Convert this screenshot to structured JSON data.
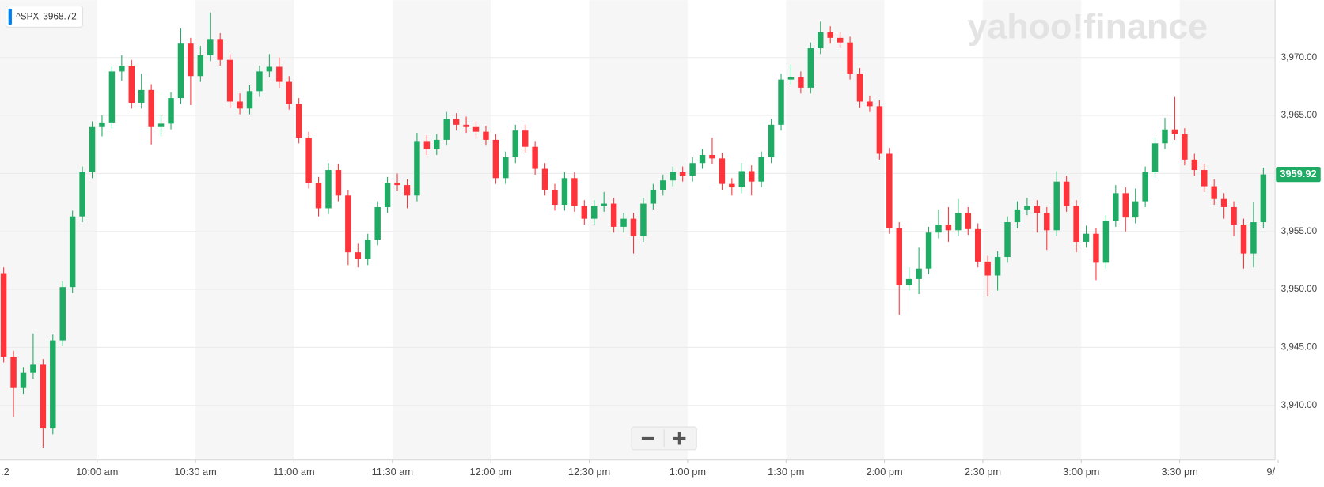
{
  "chart_data": {
    "type": "candlestick",
    "logo": "yahoo!finance",
    "badge": {
      "symbol": "^SPX",
      "value": 3968.72
    },
    "last_price": 3959.92,
    "up_color": "#1fab64",
    "down_color": "#ff333a",
    "ylim": [
      3935.3,
      3974.95
    ],
    "yticks": [
      {
        "value": 3940,
        "label": "3,940.00"
      },
      {
        "value": 3945,
        "label": "3,945.00"
      },
      {
        "value": 3950,
        "label": "3,950.00"
      },
      {
        "value": 3955,
        "label": "3,955.00"
      },
      {
        "value": 3960,
        "label": "3,960.00"
      },
      {
        "value": 3965,
        "label": "3,965.00"
      },
      {
        "value": 3970,
        "label": "3,970.00"
      }
    ],
    "xticks": [
      {
        "value": "9:30 am",
        "label": ".2"
      },
      "10:00 am",
      "10:30 am",
      "11:00 am",
      "11:30 am",
      "12:00 pm",
      "12:30 pm",
      "1:00 pm",
      "1:30 pm",
      "2:00 pm",
      "2:30 pm",
      "3:00 pm",
      "3:30 pm",
      {
        "value": "4:00 pm",
        "label": "9/"
      }
    ],
    "grid": true,
    "x": [
      "9:30 am",
      "9:33 am",
      "9:36 am",
      "9:39 am",
      "9:42 am",
      "9:45 am",
      "9:48 am",
      "9:51 am",
      "9:54 am",
      "9:57 am",
      "10:00 am",
      "10:03 am",
      "10:06 am",
      "10:09 am",
      "10:12 am",
      "10:15 am",
      "10:18 am",
      "10:21 am",
      "10:24 am",
      "10:27 am",
      "10:30 am",
      "10:33 am",
      "10:36 am",
      "10:39 am",
      "10:42 am",
      "10:45 am",
      "10:48 am",
      "10:51 am",
      "10:54 am",
      "10:57 am",
      "11:00 am",
      "11:03 am",
      "11:06 am",
      "11:09 am",
      "11:12 am",
      "11:15 am",
      "11:18 am",
      "11:21 am",
      "11:24 am",
      "11:27 am",
      "11:30 am",
      "11:33 am",
      "11:36 am",
      "11:39 am",
      "11:42 am",
      "11:45 am",
      "11:48 am",
      "11:51 am",
      "11:54 am",
      "11:57 am",
      "12:00 pm",
      "12:03 pm",
      "12:06 pm",
      "12:09 pm",
      "12:12 pm",
      "12:15 pm",
      "12:18 pm",
      "12:21 pm",
      "12:24 pm",
      "12:27 pm",
      "12:30 pm",
      "12:33 pm",
      "12:36 pm",
      "12:39 pm",
      "12:42 pm",
      "12:45 pm",
      "12:48 pm",
      "12:51 pm",
      "12:54 pm",
      "12:57 pm",
      "1:00 pm",
      "1:03 pm",
      "1:06 pm",
      "1:09 pm",
      "1:12 pm",
      "1:15 pm",
      "1:18 pm",
      "1:21 pm",
      "1:24 pm",
      "1:27 pm",
      "1:30 pm",
      "1:33 pm",
      "1:36 pm",
      "1:39 pm",
      "1:42 pm",
      "1:45 pm",
      "1:48 pm",
      "1:51 pm",
      "1:54 pm",
      "1:57 pm",
      "2:00 pm",
      "2:03 pm",
      "2:06 pm",
      "2:09 pm",
      "2:12 pm",
      "2:15 pm",
      "2:18 pm",
      "2:21 pm",
      "2:24 pm",
      "2:27 pm",
      "2:30 pm",
      "2:33 pm",
      "2:36 pm",
      "2:39 pm",
      "2:42 pm",
      "2:45 pm",
      "2:48 pm",
      "2:51 pm",
      "2:54 pm",
      "2:57 pm",
      "3:00 pm",
      "3:03 pm",
      "3:06 pm",
      "3:09 pm",
      "3:12 pm",
      "3:15 pm",
      "3:18 pm",
      "3:21 pm",
      "3:24 pm",
      "3:27 pm",
      "3:30 pm",
      "3:33 pm",
      "3:36 pm",
      "3:39 pm",
      "3:42 pm",
      "3:45 pm",
      "3:48 pm",
      "3:51 pm",
      "3:54 pm"
    ],
    "open": [
      3951.4,
      3944.2,
      3941.5,
      3942.8,
      3943.5,
      3938.0,
      3945.6,
      3950.2,
      3956.3,
      3960.1,
      3964.0,
      3964.4,
      3968.8,
      3969.3,
      3966.1,
      3967.2,
      3964.0,
      3964.3,
      3966.5,
      3971.2,
      3968.4,
      3970.2,
      3971.6,
      3969.8,
      3966.2,
      3965.6,
      3967.1,
      3968.8,
      3969.2,
      3967.9,
      3966.0,
      3963.1,
      3959.2,
      3957.0,
      3960.3,
      3958.1,
      3953.2,
      3952.6,
      3954.3,
      3957.1,
      3959.2,
      3959.0,
      3958.1,
      3962.8,
      3962.1,
      3962.9,
      3964.7,
      3964.2,
      3964.0,
      3963.6,
      3962.9,
      3959.6,
      3961.4,
      3963.7,
      3962.3,
      3960.4,
      3958.6,
      3957.3,
      3959.6,
      3957.2,
      3956.1,
      3957.2,
      3957.4,
      3955.4,
      3956.1,
      3954.6,
      3957.4,
      3958.6,
      3959.4,
      3960.1,
      3959.8,
      3960.9,
      3961.6,
      3961.3,
      3959.1,
      3958.8,
      3960.2,
      3959.3,
      3961.4,
      3964.2,
      3968.1,
      3968.3,
      3967.4,
      3970.8,
      3972.2,
      3971.7,
      3971.3,
      3968.6,
      3966.2,
      3965.8,
      3961.7,
      3955.3,
      3950.4,
      3950.9,
      3951.8,
      3954.9,
      3955.6,
      3955.1,
      3956.6,
      3955.2,
      3952.4,
      3951.2,
      3952.8,
      3955.8,
      3956.9,
      3957.2,
      3956.6,
      3955.1,
      3959.3,
      3957.2,
      3954.1,
      3954.8,
      3952.3,
      3955.9,
      3958.3,
      3956.2,
      3957.6,
      3960.1,
      3962.6,
      3963.8,
      3963.4,
      3961.2,
      3960.3,
      3958.9,
      3957.8,
      3957.1,
      3955.6,
      3953.1,
      3955.8
    ],
    "high": [
      3951.9,
      3944.7,
      3943.3,
      3946.2,
      3944.0,
      3946.1,
      3950.7,
      3956.8,
      3960.6,
      3964.5,
      3965.0,
      3969.3,
      3970.2,
      3969.8,
      3968.6,
      3967.7,
      3965.0,
      3967.0,
      3972.5,
      3971.7,
      3971.0,
      3973.9,
      3972.1,
      3970.3,
      3966.9,
      3967.6,
      3969.3,
      3970.3,
      3970.0,
      3968.4,
      3966.5,
      3963.6,
      3959.7,
      3960.9,
      3960.8,
      3958.6,
      3954.0,
      3954.8,
      3957.6,
      3959.7,
      3960.0,
      3959.5,
      3963.5,
      3963.3,
      3963.4,
      3965.3,
      3965.2,
      3964.9,
      3964.5,
      3964.1,
      3963.4,
      3961.9,
      3964.2,
      3964.2,
      3962.8,
      3960.9,
      3959.1,
      3960.1,
      3960.1,
      3957.7,
      3957.7,
      3958.4,
      3957.9,
      3956.6,
      3956.6,
      3957.9,
      3959.1,
      3959.9,
      3960.6,
      3960.6,
      3961.4,
      3962.1,
      3963.1,
      3961.8,
      3959.6,
      3960.9,
      3960.7,
      3961.9,
      3964.7,
      3968.6,
      3969.4,
      3968.8,
      3971.3,
      3973.1,
      3972.7,
      3972.2,
      3971.8,
      3969.1,
      3966.7,
      3966.3,
      3962.2,
      3955.8,
      3951.9,
      3953.6,
      3955.4,
      3956.9,
      3957.1,
      3957.8,
      3957.1,
      3955.7,
      3952.9,
      3953.3,
      3956.3,
      3957.6,
      3957.9,
      3957.7,
      3957.1,
      3960.2,
      3959.8,
      3957.7,
      3955.5,
      3955.3,
      3956.4,
      3959.0,
      3958.8,
      3958.7,
      3960.6,
      3963.1,
      3964.8,
      3966.6,
      3963.9,
      3961.7,
      3960.8,
      3959.5,
      3958.3,
      3957.6,
      3956.1,
      3957.5,
      3960.5
    ],
    "low": [
      3943.7,
      3939.0,
      3941.0,
      3942.3,
      3936.3,
      3937.5,
      3945.1,
      3949.7,
      3955.8,
      3959.6,
      3963.2,
      3963.9,
      3968.0,
      3965.6,
      3965.6,
      3962.5,
      3963.2,
      3963.8,
      3966.0,
      3965.9,
      3967.9,
      3969.7,
      3969.3,
      3965.7,
      3965.1,
      3965.1,
      3966.6,
      3968.3,
      3967.4,
      3965.5,
      3962.6,
      3958.7,
      3956.3,
      3956.5,
      3957.6,
      3952.1,
      3951.9,
      3952.1,
      3953.8,
      3956.6,
      3958.5,
      3957.0,
      3957.6,
      3961.6,
      3961.6,
      3962.4,
      3963.7,
      3963.5,
      3963.1,
      3962.4,
      3959.1,
      3959.1,
      3960.9,
      3961.8,
      3959.9,
      3958.1,
      3956.8,
      3956.8,
      3956.7,
      3955.6,
      3955.6,
      3956.7,
      3954.9,
      3954.9,
      3953.1,
      3954.1,
      3956.9,
      3958.1,
      3958.9,
      3959.3,
      3959.3,
      3960.4,
      3960.8,
      3958.6,
      3958.1,
      3958.3,
      3958.1,
      3958.8,
      3960.9,
      3963.7,
      3967.6,
      3966.9,
      3966.9,
      3970.3,
      3971.2,
      3970.8,
      3968.1,
      3965.7,
      3965.3,
      3961.2,
      3954.8,
      3947.8,
      3949.9,
      3949.6,
      3951.3,
      3954.4,
      3954.1,
      3954.6,
      3954.7,
      3951.9,
      3949.4,
      3949.9,
      3952.3,
      3955.3,
      3956.4,
      3954.9,
      3953.4,
      3954.6,
      3956.7,
      3953.2,
      3953.6,
      3950.8,
      3951.8,
      3955.4,
      3955.0,
      3955.7,
      3957.1,
      3959.6,
      3962.1,
      3962.9,
      3960.7,
      3959.8,
      3958.4,
      3957.3,
      3956.1,
      3954.6,
      3951.8,
      3951.9,
      3955.3
    ],
    "close": [
      3944.2,
      3941.5,
      3942.8,
      3943.5,
      3938.0,
      3945.6,
      3950.2,
      3956.3,
      3960.1,
      3964.0,
      3964.4,
      3968.8,
      3969.3,
      3966.1,
      3967.2,
      3964.0,
      3964.3,
      3966.5,
      3971.2,
      3968.4,
      3970.2,
      3971.6,
      3969.8,
      3966.2,
      3965.6,
      3967.1,
      3968.8,
      3969.2,
      3967.9,
      3966.0,
      3963.1,
      3959.2,
      3957.0,
      3960.3,
      3958.1,
      3953.2,
      3952.6,
      3954.3,
      3957.1,
      3959.2,
      3959.0,
      3958.1,
      3962.8,
      3962.1,
      3962.9,
      3964.7,
      3964.2,
      3964.0,
      3963.6,
      3962.9,
      3959.6,
      3961.4,
      3963.7,
      3962.3,
      3960.4,
      3958.6,
      3957.3,
      3959.6,
      3957.2,
      3956.1,
      3957.2,
      3957.4,
      3955.4,
      3956.1,
      3954.6,
      3957.4,
      3958.6,
      3959.4,
      3960.1,
      3959.8,
      3960.9,
      3961.6,
      3961.3,
      3959.1,
      3958.8,
      3960.2,
      3959.3,
      3961.4,
      3964.2,
      3968.1,
      3968.3,
      3967.4,
      3970.8,
      3972.2,
      3971.7,
      3971.3,
      3968.6,
      3966.2,
      3965.8,
      3961.7,
      3955.3,
      3950.4,
      3950.9,
      3951.8,
      3954.9,
      3955.6,
      3955.1,
      3956.6,
      3955.2,
      3952.4,
      3951.2,
      3952.8,
      3955.8,
      3956.9,
      3957.2,
      3956.6,
      3955.1,
      3959.3,
      3957.2,
      3954.1,
      3954.8,
      3952.3,
      3955.9,
      3958.3,
      3956.2,
      3957.6,
      3960.1,
      3962.6,
      3963.8,
      3963.4,
      3961.2,
      3960.3,
      3958.9,
      3957.8,
      3957.1,
      3955.6,
      3953.1,
      3955.8,
      3959.92
    ]
  }
}
